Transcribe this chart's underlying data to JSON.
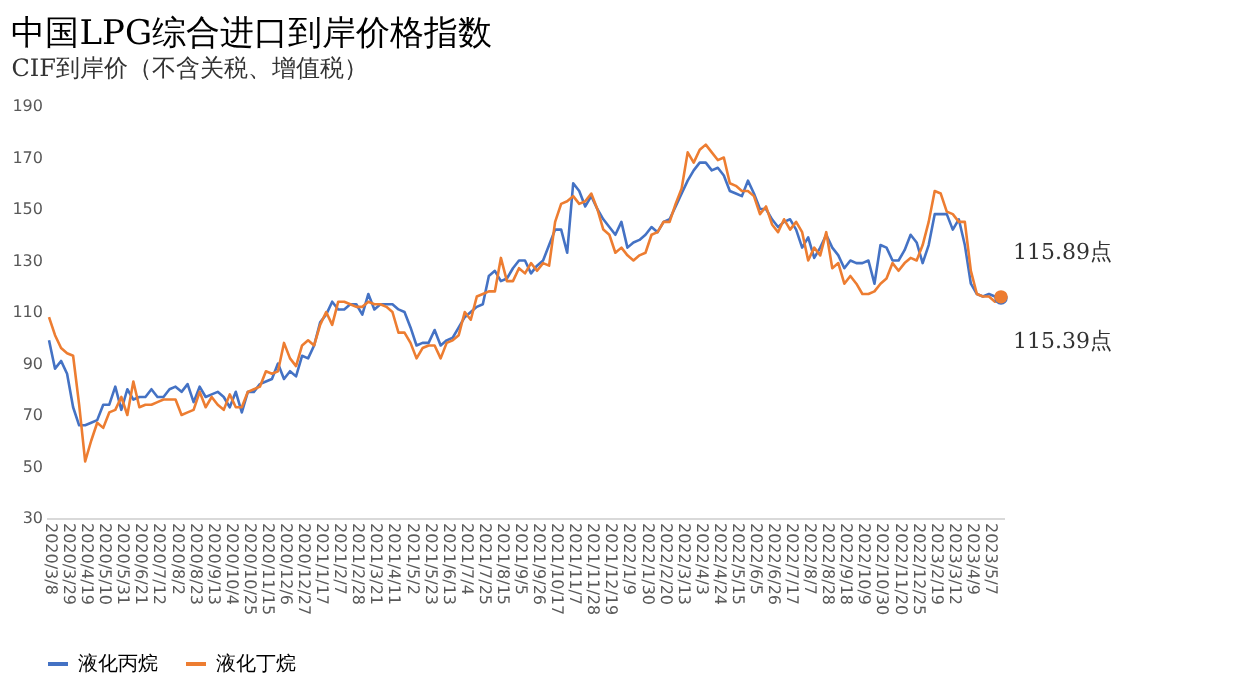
{
  "chart_data": {
    "type": "line",
    "title": "中国LPG综合进口到岸价格指数",
    "subtitle": "CIF到岸价（不含关税、增值税）",
    "categories": [
      "2020/3/8",
      null,
      null,
      "2020/3/29",
      null,
      null,
      "2020/4/19",
      null,
      null,
      "2020/5/10",
      null,
      null,
      "2020/5/31",
      null,
      null,
      "2020/6/21",
      null,
      null,
      "2020/7/12",
      null,
      null,
      "2020/8/2",
      null,
      null,
      "2020/8/23",
      null,
      null,
      "2020/9/13",
      null,
      null,
      "2020/10/4",
      null,
      null,
      "2020/10/25",
      null,
      null,
      "2020/11/15",
      null,
      null,
      "2020/12/6",
      null,
      null,
      "2020/12/27",
      null,
      null,
      "2021/1/17",
      null,
      null,
      "2021/2/7",
      null,
      null,
      "2021/2/28",
      null,
      null,
      "2021/3/21",
      null,
      null,
      "2021/4/11",
      null,
      null,
      "2021/5/2",
      null,
      null,
      "2021/5/23",
      null,
      null,
      "2021/6/13",
      null,
      null,
      "2021/7/4",
      null,
      null,
      "2021/7/25",
      null,
      null,
      "2021/8/15",
      null,
      null,
      "2021/9/5",
      null,
      null,
      "2021/9/26",
      null,
      null,
      "2021/10/17",
      null,
      null,
      "2021/11/7",
      null,
      null,
      "2021/11/28",
      null,
      null,
      "2021/12/19",
      null,
      null,
      "2022/1/9",
      null,
      null,
      "2022/1/30",
      null,
      null,
      "2022/2/20",
      null,
      null,
      "2022/3/13",
      null,
      null,
      "2022/4/3",
      null,
      null,
      "2022/4/24",
      null,
      null,
      "2022/5/15",
      null,
      null,
      "2022/6/5",
      null,
      null,
      "2022/6/26",
      null,
      null,
      "2022/7/17",
      null,
      null,
      "2022/8/7",
      null,
      null,
      "2022/8/28",
      null,
      null,
      "2022/9/18",
      null,
      null,
      "2022/10/9",
      null,
      null,
      "2022/10/30",
      null,
      null,
      "2022/11/20",
      null,
      null,
      "2022/12/25",
      null,
      null,
      "2023/2/19",
      null,
      null,
      "2023/3/12",
      null,
      null,
      "2023/4/9",
      null,
      null,
      "2023/5/7",
      null,
      null
    ],
    "series": [
      {
        "name": "液化丙烷",
        "color": "#4472c4",
        "values": [
          99,
          88,
          91,
          86,
          73,
          66,
          66,
          67,
          68,
          74,
          74,
          81,
          72,
          80,
          76,
          77,
          77,
          80,
          77,
          77,
          80,
          81,
          79,
          82,
          75,
          81,
          77,
          78,
          79,
          77,
          73,
          79,
          71,
          79,
          79,
          82,
          83,
          84,
          90,
          84,
          87,
          85,
          93,
          92,
          97,
          106,
          109,
          114,
          111,
          111,
          113,
          113,
          109,
          117,
          111,
          113,
          113,
          113,
          111,
          110,
          104,
          97,
          98,
          98,
          103,
          97,
          99,
          100,
          104,
          108,
          110,
          112,
          113,
          124,
          126,
          122,
          123,
          127,
          130,
          130,
          125,
          128,
          130,
          136,
          142,
          142,
          133,
          160,
          157,
          151,
          155,
          150,
          146,
          143,
          140,
          145,
          135,
          137,
          138,
          140,
          143,
          141,
          145,
          146,
          151,
          156,
          161,
          165,
          168,
          168,
          165,
          166,
          163,
          157,
          156,
          155,
          161,
          156,
          150,
          150,
          146,
          143,
          145,
          146,
          142,
          135,
          139,
          131,
          135,
          140,
          135,
          132,
          127,
          130,
          129,
          129,
          130,
          121,
          136,
          135,
          130,
          130,
          134,
          140,
          137,
          129,
          136,
          148,
          148,
          148,
          142,
          146,
          136,
          121,
          117,
          116,
          117,
          116,
          115.39
        ],
        "value_labels": [
          null,
          null,
          null,
          null,
          null,
          null,
          null,
          null,
          null,
          null,
          null,
          null,
          null,
          null,
          null,
          null,
          null,
          null,
          null,
          null,
          null,
          null,
          null,
          null,
          null,
          null,
          null,
          null,
          null,
          null,
          null,
          null,
          null,
          null,
          null,
          null,
          null,
          null,
          null,
          null,
          null,
          null,
          null,
          null,
          null,
          null,
          null,
          null,
          null,
          null,
          null,
          null,
          null,
          null,
          null,
          null,
          null,
          null,
          null,
          null,
          null,
          null,
          null,
          null,
          null,
          null,
          null,
          null,
          null,
          null,
          null,
          null,
          null,
          null,
          null,
          null,
          null,
          null,
          null,
          null,
          null,
          null,
          null,
          null,
          null,
          null,
          null,
          null,
          null,
          null,
          null,
          null,
          null,
          null,
          null,
          null,
          null,
          null,
          null,
          null,
          null,
          null,
          null,
          null,
          null,
          null,
          null,
          null,
          null,
          null,
          null,
          null,
          null,
          null,
          null,
          null,
          null,
          null,
          null,
          null,
          null,
          null,
          null,
          null,
          null,
          null,
          null,
          null,
          null,
          null,
          null,
          null,
          null,
          null,
          null,
          null,
          null,
          null,
          null,
          null,
          null,
          null,
          null,
          null,
          null,
          null,
          null,
          null,
          null,
          null,
          null,
          null,
          null,
          null,
          null,
          null,
          null,
          null,
          "115.39点"
        ]
      },
      {
        "name": "液化丁烷",
        "color": "#ed7d31",
        "values": [
          108,
          101,
          96,
          94,
          93,
          74,
          52,
          60,
          67,
          65,
          71,
          72,
          77,
          70,
          83,
          73,
          74,
          74,
          75,
          76,
          76,
          76,
          70,
          71,
          72,
          79,
          73,
          77,
          74,
          72,
          78,
          73,
          73,
          79,
          80,
          81,
          87,
          86,
          87,
          98,
          92,
          89,
          97,
          99,
          97,
          105,
          110,
          105,
          114,
          114,
          113,
          112,
          112,
          114,
          113,
          113,
          112,
          110,
          102,
          102,
          98,
          92,
          96,
          97,
          97,
          92,
          98,
          99,
          101,
          110,
          107,
          116,
          117,
          118,
          118,
          131,
          122,
          122,
          127,
          125,
          129,
          126,
          129,
          128,
          145,
          152,
          153,
          155,
          152,
          153,
          156,
          150,
          142,
          140,
          133,
          135,
          132,
          130,
          132,
          133,
          140,
          141,
          145,
          145,
          152,
          158,
          172,
          168,
          173,
          175,
          172,
          169,
          170,
          160,
          159,
          157,
          157,
          155,
          148,
          151,
          144,
          141,
          146,
          142,
          145,
          141,
          130,
          135,
          132,
          141,
          127,
          129,
          121,
          124,
          121,
          117,
          117,
          118,
          121,
          123,
          129,
          126,
          129,
          131,
          130,
          136,
          145,
          157,
          156,
          149,
          148,
          145,
          145,
          126,
          117,
          116,
          116,
          114,
          115.89
        ],
        "value_labels": [
          null,
          null,
          null,
          null,
          null,
          null,
          null,
          null,
          null,
          null,
          null,
          null,
          null,
          null,
          null,
          null,
          null,
          null,
          null,
          null,
          null,
          null,
          null,
          null,
          null,
          null,
          null,
          null,
          null,
          null,
          null,
          null,
          null,
          null,
          null,
          null,
          null,
          null,
          null,
          null,
          null,
          null,
          null,
          null,
          null,
          null,
          null,
          null,
          null,
          null,
          null,
          null,
          null,
          null,
          null,
          null,
          null,
          null,
          null,
          null,
          null,
          null,
          null,
          null,
          null,
          null,
          null,
          null,
          null,
          null,
          null,
          null,
          null,
          null,
          null,
          null,
          null,
          null,
          null,
          null,
          null,
          null,
          null,
          null,
          null,
          null,
          null,
          null,
          null,
          null,
          null,
          null,
          null,
          null,
          null,
          null,
          null,
          null,
          null,
          null,
          null,
          null,
          null,
          null,
          null,
          null,
          null,
          null,
          null,
          null,
          null,
          null,
          null,
          null,
          null,
          null,
          null,
          null,
          null,
          null,
          null,
          null,
          null,
          null,
          null,
          null,
          null,
          null,
          null,
          null,
          null,
          null,
          null,
          null,
          null,
          null,
          null,
          null,
          null,
          null,
          null,
          null,
          null,
          null,
          null,
          null,
          null,
          null,
          null,
          null,
          null,
          null,
          null,
          null,
          null,
          null,
          null,
          null,
          "115.89点"
        ]
      }
    ],
    "ylim": [
      30,
      190
    ],
    "yticks": [
      30,
      50,
      70,
      90,
      110,
      130,
      150,
      170,
      190
    ],
    "grid": false,
    "legend": "bottom",
    "line_style": "solid"
  }
}
